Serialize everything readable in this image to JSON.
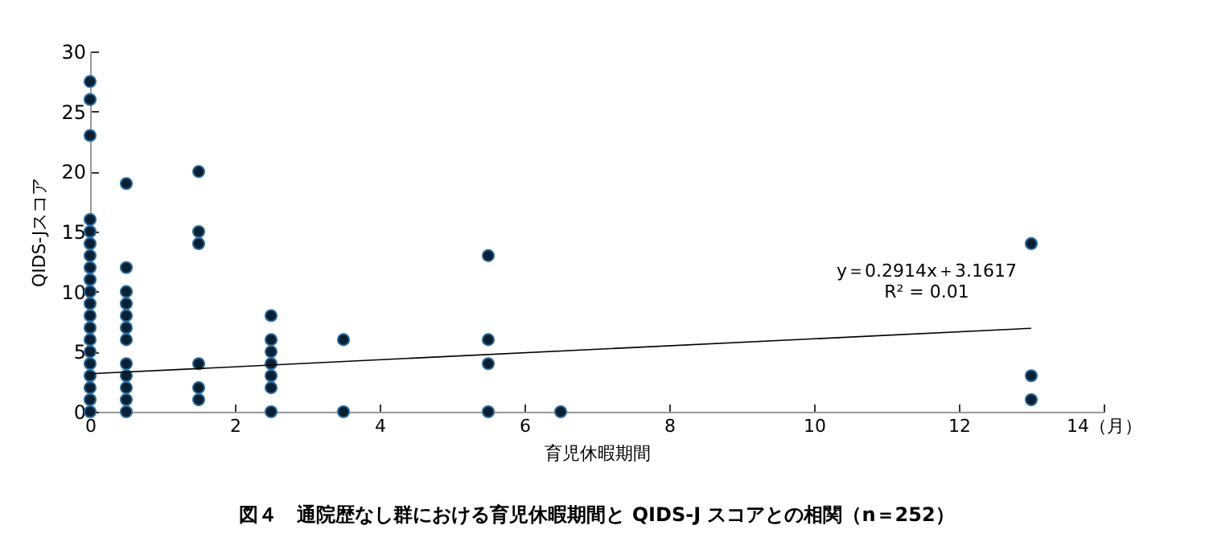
{
  "chart_data": {
    "type": "scatter",
    "title": "図４　通院歴なし群における育児休暇期間と QIDS-J スコアとの相関（n＝252）",
    "xlabel": "育児休暇期間",
    "ylabel": "QIDS-Jスコア",
    "xlim": [
      0,
      14
    ],
    "xticks": [
      0,
      2,
      4,
      6,
      8,
      10,
      12,
      {
        "value": 14,
        "label": "14（月）"
      }
    ],
    "ylim": [
      0,
      30
    ],
    "yticks": [
      0,
      5,
      10,
      15,
      20,
      25,
      30
    ],
    "marker": "circle",
    "annotations": [
      "y＝0.2914x＋3.1617",
      "R² = 0.01"
    ],
    "series": [
      {
        "color": "#0b1f33",
        "x": [
          0,
          0,
          0,
          0,
          0,
          0,
          0,
          0,
          0,
          0,
          0,
          0,
          0,
          0,
          0,
          0,
          0,
          0,
          0,
          0,
          0.5,
          0.5,
          0.5,
          0.5,
          0.5,
          0.5,
          0.5,
          0.5,
          0.5,
          0.5,
          0.5,
          0.5,
          1.5,
          1.5,
          1.5,
          1.5,
          1.5,
          1.5,
          2.5,
          2.5,
          2.5,
          2.5,
          2.5,
          2.5,
          2.5,
          3.5,
          3.5,
          5.5,
          5.5,
          5.5,
          5.5,
          6.5,
          13,
          13,
          13
        ],
        "values": [
          0,
          1,
          2,
          3,
          4,
          5,
          6,
          7,
          8,
          9,
          10,
          12,
          13,
          14,
          15,
          16,
          23,
          26,
          27.5,
          11,
          0,
          1,
          2,
          3,
          4,
          6,
          7,
          8,
          9,
          10,
          12,
          19,
          1,
          2,
          4,
          14,
          15,
          20,
          0,
          2,
          3,
          4,
          5,
          6,
          8,
          0,
          6,
          0,
          4,
          6,
          13,
          0,
          1,
          3,
          14
        ]
      },
      {
        "type": "line",
        "color": "#000000",
        "marker": "none",
        "x": [
          0,
          13
        ],
        "values": [
          3.16,
          6.95
        ]
      }
    ]
  }
}
